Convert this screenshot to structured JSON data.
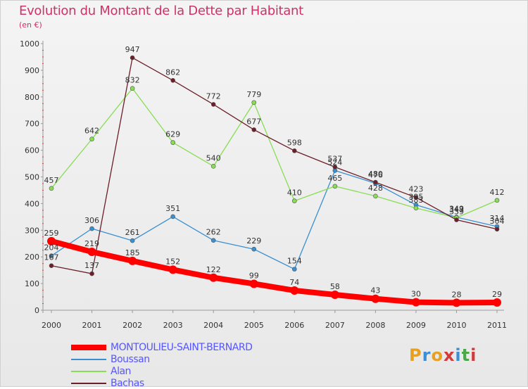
{
  "title": "Evolution du Montant de la Dette par Habitant",
  "subtitle": "(en €)",
  "logo": {
    "text": "Proxiti",
    "colors": [
      "#e8a020",
      "#3b8fd6",
      "#e8a020",
      "#d43a3a",
      "#3b8fd6",
      "#4aa84a",
      "#d43a3a"
    ]
  },
  "chart_data": {
    "type": "line",
    "title": "Evolution du Montant de la Dette par Habitant",
    "ylabel": "(en €)",
    "x": [
      "2000",
      "2001",
      "2002",
      "2003",
      "2004",
      "2005",
      "2006",
      "2007",
      "2008",
      "2009",
      "2010",
      "2011"
    ],
    "ylim": [
      0,
      1000
    ],
    "yticks": [
      "0",
      "100",
      "200",
      "300",
      "400",
      "500",
      "600",
      "700",
      "800",
      "900",
      "1000"
    ],
    "grid": false,
    "legend_position": "bottom-left",
    "series": [
      {
        "name": "MONTOULIEU-SAINT-BERNARD",
        "color": "#ff0000",
        "values": [
          259,
          219,
          185,
          152,
          122,
          99,
          74,
          58,
          43,
          30,
          28,
          29
        ]
      },
      {
        "name": "Boussan",
        "color": "#3a8fd0",
        "values": [
          204,
          306,
          261,
          351,
          262,
          229,
          154,
          524,
          476,
          395,
          349,
          314
        ]
      },
      {
        "name": "Alan",
        "color": "#88dd55",
        "values": [
          457,
          642,
          832,
          629,
          540,
          779,
          410,
          465,
          428,
          383,
          347,
          412
        ]
      },
      {
        "name": "Bachas",
        "color": "#6b1f2a",
        "values": [
          167,
          137,
          947,
          862,
          772,
          677,
          598,
          537,
          480,
          423,
          339,
          304
        ]
      }
    ]
  }
}
